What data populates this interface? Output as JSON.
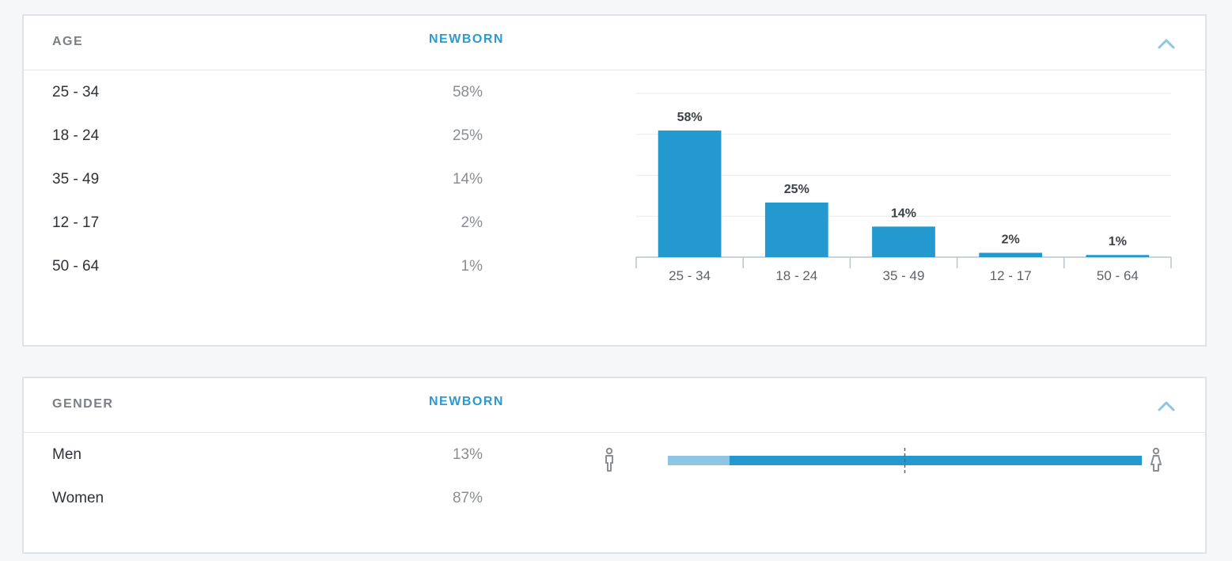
{
  "age": {
    "title": "AGE",
    "segment": "NEWBORN",
    "rows": [
      {
        "label": "25 - 34",
        "value": "58%"
      },
      {
        "label": "18 - 24",
        "value": "25%"
      },
      {
        "label": "35 - 49",
        "value": "14%"
      },
      {
        "label": "12 - 17",
        "value": "2%"
      },
      {
        "label": "50 - 64",
        "value": "1%"
      }
    ]
  },
  "gender": {
    "title": "GENDER",
    "segment": "NEWBORN",
    "rows": [
      {
        "label": "Men",
        "value": "13%"
      },
      {
        "label": "Women",
        "value": "87%"
      }
    ],
    "men_icon": "male-person-icon",
    "women_icon": "female-person-icon"
  },
  "colors": {
    "accent": "#2b9ad1",
    "bar": "#2399d0",
    "bar_light": "#8ec5e4",
    "title_gray": "#7b7f84"
  },
  "icons": {
    "collapse": "chevron-up-icon"
  },
  "chart_data": [
    {
      "type": "bar",
      "categories": [
        "25 - 34",
        "18 - 24",
        "35 - 49",
        "12 - 17",
        "50 - 64"
      ],
      "values": [
        58,
        25,
        14,
        2,
        1
      ],
      "data_labels": [
        "58%",
        "25%",
        "14%",
        "2%",
        "1%"
      ],
      "ylim": [
        0,
        75
      ],
      "grid": true
    },
    {
      "type": "bar",
      "orientation": "horizontal-stacked",
      "categories": [
        "Men",
        "Women"
      ],
      "values": [
        13,
        87
      ],
      "midline": 50
    }
  ]
}
